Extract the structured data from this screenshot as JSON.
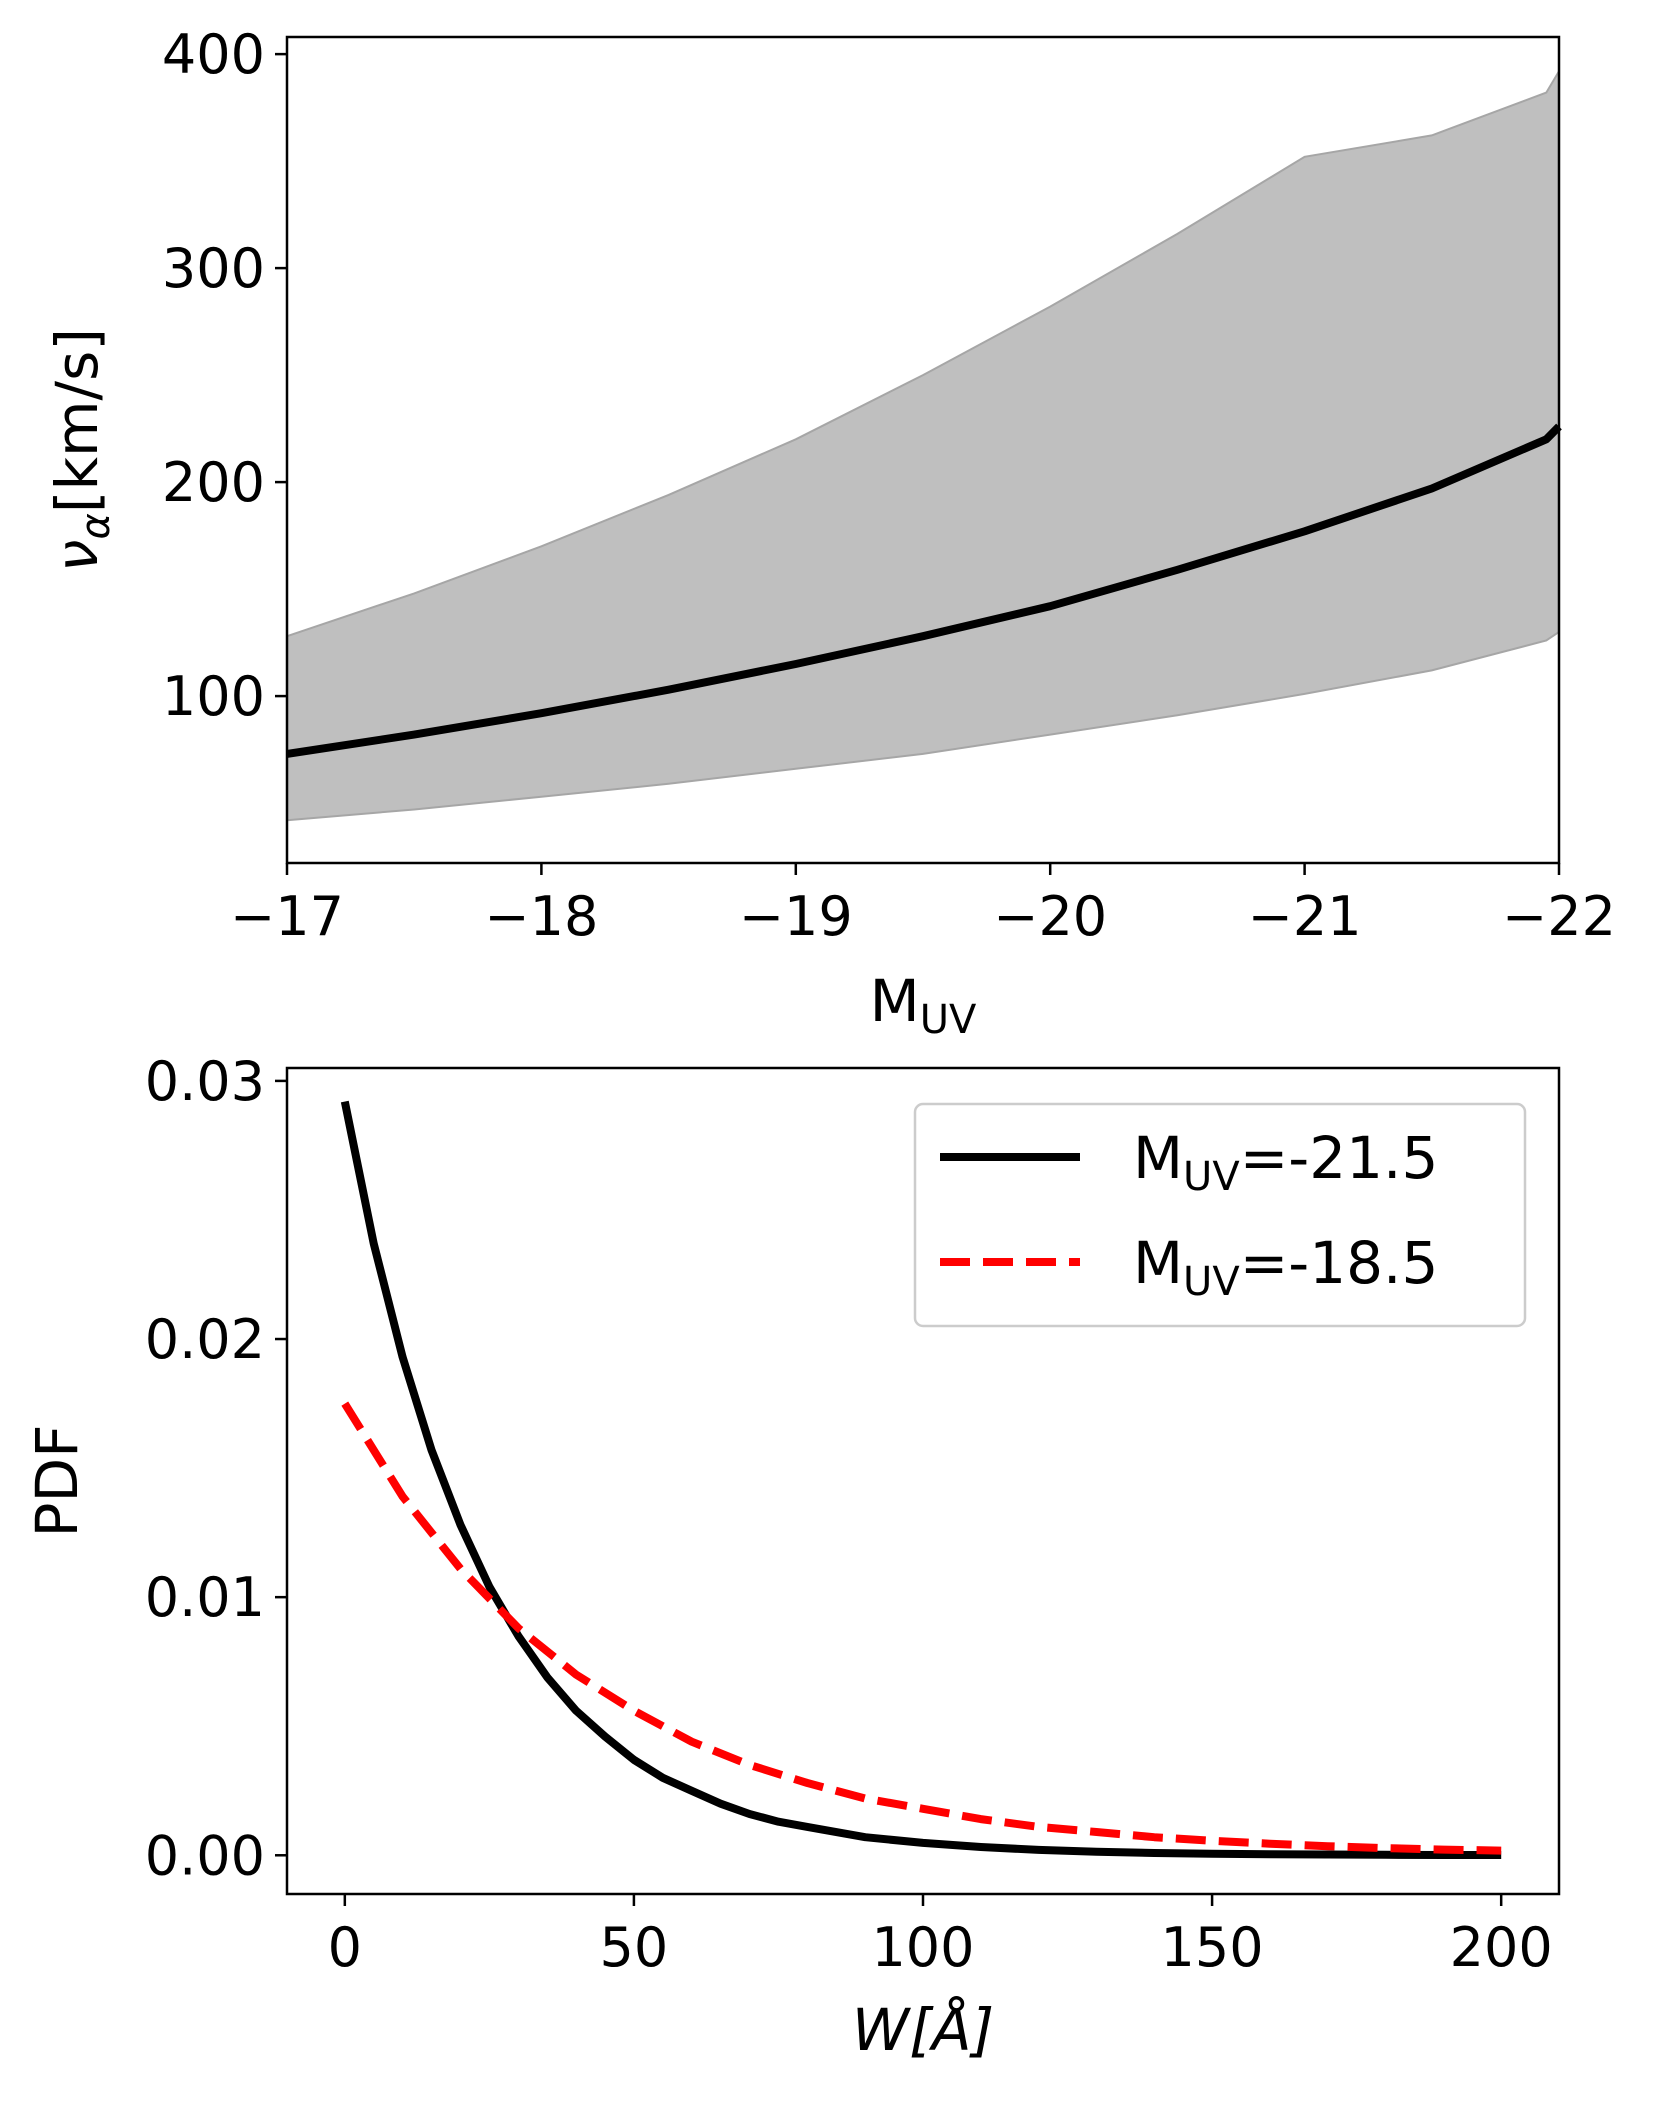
{
  "chart_data": [
    {
      "type": "line",
      "xlabel": "M",
      "xlabel_sub": "UV",
      "ylabel": "ν",
      "ylabel_sub": "α",
      "ylabel_rest": "[km/s]",
      "xlim": [
        -17,
        -22
      ],
      "ylim": [
        22,
        408
      ],
      "x_ticks": [
        {
          "value": -17,
          "label": "−17"
        },
        {
          "value": -18,
          "label": "−18"
        },
        {
          "value": -19,
          "label": "−19"
        },
        {
          "value": -20,
          "label": "−20"
        },
        {
          "value": -21,
          "label": "−21"
        },
        {
          "value": -22,
          "label": "−22"
        }
      ],
      "y_ticks": [
        {
          "value": 100,
          "label": "100"
        },
        {
          "value": 200,
          "label": "200"
        },
        {
          "value": 300,
          "label": "300"
        },
        {
          "value": 400,
          "label": "400"
        }
      ],
      "grid": false,
      "band": {
        "color": "#bfbfbf",
        "edge_color": "#a6a6a6",
        "x": [
          -17,
          -17.5,
          -18,
          -18.5,
          -19,
          -19.5,
          -20,
          -20.5,
          -21,
          -21.5,
          -21.95,
          -22
        ],
        "upper": [
          128,
          148,
          170,
          194,
          220,
          250,
          282,
          316,
          352,
          362,
          382,
          392
        ],
        "lower": [
          42,
          47,
          53,
          59,
          66,
          73,
          82,
          91,
          101,
          112,
          126,
          130
        ]
      },
      "series": [
        {
          "color": "#000000",
          "style": "solid",
          "x": [
            -17,
            -17.5,
            -18,
            -18.5,
            -19,
            -19.5,
            -20,
            -20.5,
            -21,
            -21.5,
            -21.95,
            -22
          ],
          "y": [
            73,
            82,
            92,
            103,
            115,
            128,
            142,
            159,
            177,
            197,
            220,
            226
          ]
        }
      ]
    },
    {
      "type": "line",
      "xlabel": "W[Å]",
      "ylabel": "PDF",
      "xlim": [
        -10,
        210
      ],
      "ylim": [
        -0.0015,
        0.0305
      ],
      "x_ticks": [
        {
          "value": 0,
          "label": "0"
        },
        {
          "value": 50,
          "label": "50"
        },
        {
          "value": 100,
          "label": "100"
        },
        {
          "value": 150,
          "label": "150"
        },
        {
          "value": 200,
          "label": "200"
        }
      ],
      "y_ticks": [
        {
          "value": 0.0,
          "label": "0.00"
        },
        {
          "value": 0.01,
          "label": "0.01"
        },
        {
          "value": 0.02,
          "label": "0.02"
        },
        {
          "value": 0.03,
          "label": "0.03"
        }
      ],
      "grid": false,
      "legend_position": "top-right",
      "series": [
        {
          "name_prefix": "M",
          "name_sub": "UV",
          "name_suffix": "=-21.5",
          "color": "#000000",
          "style": "solid",
          "x": [
            0,
            5,
            10,
            15,
            20,
            25,
            30,
            35,
            40,
            45,
            50,
            55,
            60,
            65,
            70,
            75,
            80,
            90,
            100,
            110,
            120,
            130,
            140,
            150,
            160,
            170,
            180,
            190,
            200
          ],
          "y": [
            0.0292,
            0.0237,
            0.0193,
            0.0157,
            0.0128,
            0.0104,
            0.0085,
            0.0069,
            0.0056,
            0.0046,
            0.0037,
            0.003,
            0.0025,
            0.002,
            0.0016,
            0.0013,
            0.0011,
            0.0007,
            0.00048,
            0.00032,
            0.00021,
            0.00014,
            9e-05,
            6e-05,
            4e-05,
            3e-05,
            2e-05,
            1e-05,
            1e-05
          ]
        },
        {
          "name_prefix": "M",
          "name_sub": "UV",
          "name_suffix": "=-18.5",
          "color": "#ff0000",
          "style": "dashed",
          "x": [
            0,
            10,
            20,
            30,
            40,
            50,
            60,
            70,
            80,
            90,
            100,
            110,
            120,
            130,
            140,
            150,
            160,
            170,
            180,
            190,
            200
          ],
          "y": [
            0.0175,
            0.0139,
            0.0111,
            0.0088,
            0.007,
            0.0056,
            0.0044,
            0.0035,
            0.0028,
            0.0022,
            0.0018,
            0.0014,
            0.0011,
            0.0009,
            0.0007,
            0.00056,
            0.00045,
            0.00035,
            0.00028,
            0.00022,
            0.00018
          ]
        }
      ]
    }
  ]
}
